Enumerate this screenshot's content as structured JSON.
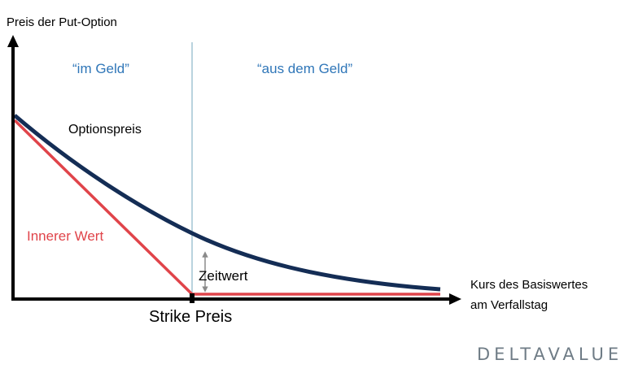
{
  "chart_data": {
    "type": "line",
    "title": "",
    "ylabel": "Preis der Put-Option",
    "xlabel": "Kurs des Basiswertes am Verfallstag",
    "xlabel_lines": [
      "Kurs des Basiswertes",
      "am Verfallstag"
    ],
    "strike_label": "Strike Preis",
    "regions": {
      "left": "“im Geld”",
      "right": "“aus dem Geld”"
    },
    "series": [
      {
        "name": "Optionspreis",
        "color": "#142d55"
      },
      {
        "name": "Innerer Wert",
        "color": "#e0444a"
      }
    ],
    "annotations": {
      "time_value": "Zeitwert"
    },
    "grid": false,
    "legend": "none",
    "colors": {
      "axis": "#000000",
      "region_text": "#2f76b8",
      "divider": "#b9d3de",
      "arrow": "#8a8a8a",
      "brand": "#6f7c86"
    }
  },
  "brand": "DELTAVALUE"
}
